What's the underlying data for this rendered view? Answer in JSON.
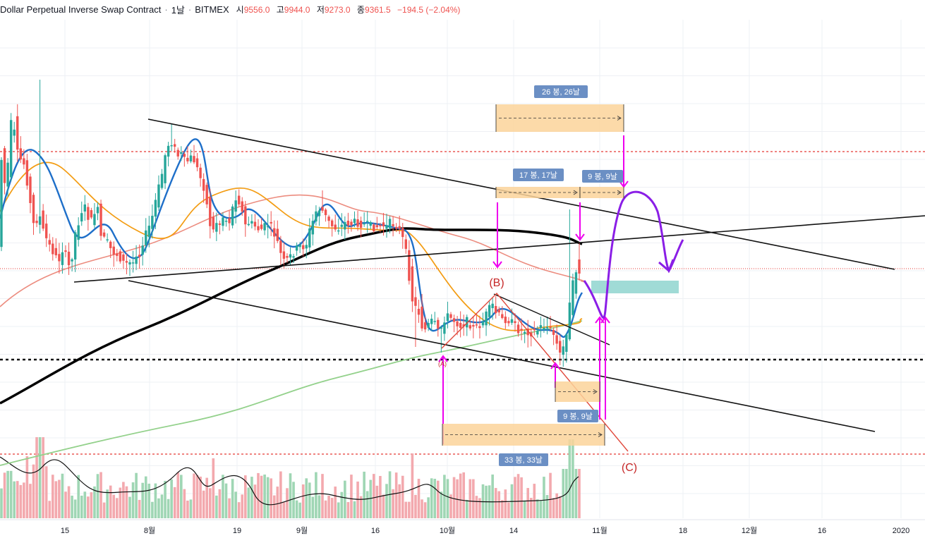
{
  "header": {
    "title": "Dollar Perpetual Inverse Swap Contract",
    "interval": "1날",
    "exchange": "BITMEX",
    "open_label": "시",
    "open": "9556.0",
    "high_label": "고",
    "high": "9944.0",
    "low_label": "저",
    "low": "9273.0",
    "close_label": "종",
    "close": "9361.5",
    "change": "−194.5 (−2.04%)"
  },
  "colors": {
    "up": "#26a69a",
    "down": "#ef5350",
    "ema_fast": "#1e6fc9",
    "ema_mid": "#f39c12",
    "ema_slow": "#ec8c7f",
    "ma_long": "#93d18b",
    "ma_black": "#000000",
    "vol_up": "#9fd6b4",
    "vol_down": "#f3a9ae",
    "level_line": "#e53935",
    "ruler_fill": "#fbd49a",
    "ruler_label_bg": "#6b8fc4",
    "drawing_magenta": "#ee00ee",
    "drawing_purple": "#8a1ee6",
    "teal_box": "#8fd5cf"
  },
  "x_axis": {
    "labels": [
      "15",
      "8월",
      "19",
      "9월",
      "16",
      "10월",
      "14",
      "11월",
      "18",
      "12월",
      "16",
      "2020"
    ]
  },
  "annotations": {
    "label_b": "(B)",
    "label_c": "(C)",
    "label_a": "(A)",
    "ruler_26": "26 봉, 26날",
    "ruler_17": "17 봉, 17날",
    "ruler_9_top": "9 봉, 9날",
    "ruler_9_bottom": "9 봉, 9날",
    "ruler_33": "33 봉, 33날"
  },
  "chart_data": {
    "type": "candlestick",
    "title": "Dollar Perpetual Inverse Swap Contract · 1날 · BITMEX",
    "interval": "1 day",
    "x_start": "2019-07-08",
    "x_end": "2020-01-02",
    "last_candle": {
      "open": 9556.0,
      "high": 9944.0,
      "low": 9273.0,
      "close": 9361.5,
      "change": -194.5,
      "change_pct": -2.04
    },
    "series_in_chart": [
      "OHLC candles",
      "EMA fast (blue)",
      "EMA (orange)",
      "EMA (salmon)",
      "MA (green)",
      "MA (black)",
      "Volume",
      "Volume MA"
    ]
  }
}
